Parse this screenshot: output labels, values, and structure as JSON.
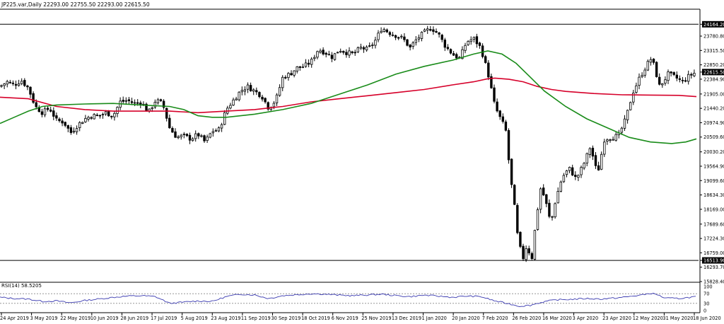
{
  "header": {
    "symbol_line": "JP225.var,Daily   22293.00 22755.50 22293.00 22615.50"
  },
  "rsi_label": "RSI(14) 58.5205",
  "colors": {
    "price_bar": "#000000",
    "ma_short": "#d6002a",
    "ma_green": "#1a8c1a",
    "rsi_line": "#3b3bb0",
    "hline": "#000000",
    "axis_text": "#000000",
    "level_box_bg": "#000000",
    "level_box_text": "#ffffff",
    "rsi_level_line": "#888888"
  },
  "chart_data": [
    {
      "type": "candlestick",
      "symbol": "JP225.var",
      "timeframe": "Daily",
      "ylim": [
        15828.0,
        24629.5
      ],
      "y_ticks": [
        "24164.20",
        "23780.80",
        "23315.50",
        "22850.20",
        "22615.50",
        "22384.90",
        "21905.00",
        "21440.20",
        "20974.90",
        "20509.60",
        "20030.20",
        "19564.90",
        "19099.60",
        "18634.30",
        "18169.00",
        "17689.60",
        "17224.30",
        "16759.00",
        "16513.90",
        "16293.70",
        "15828.40"
      ],
      "x_tick_labels": [
        "24 Apr 2019",
        "3 May 2019",
        "22 May 2019",
        "10 Jun 2019",
        "28 Jun 2019",
        "17 Jul 2019",
        "5 Aug 2019",
        "23 Aug 2019",
        "11 Sep 2019",
        "30 Sep 2019",
        "18 Oct 2019",
        "6 Nov 2019",
        "25 Nov 2019",
        "13 Dec 2019",
        "1 Jan 2020",
        "20 Jan 2020",
        "7 Feb 2020",
        "26 Feb 2020",
        "16 Mar 2020",
        "3 Apr 2020",
        "23 Apr 2020",
        "12 May 2020",
        "31 May 2020",
        "18 Jun 2020"
      ],
      "horizontal_lines": [
        {
          "level": 24164.2,
          "label": "24164.20"
        },
        {
          "level": 16513.9,
          "label": "16513.90"
        }
      ],
      "current_price": {
        "level": 22615.5,
        "label": "22615.50"
      },
      "close_path": [
        [
          0,
          22150
        ],
        [
          10,
          22300
        ],
        [
          20,
          22200
        ],
        [
          30,
          22350
        ],
        [
          40,
          22100
        ],
        [
          50,
          21500
        ],
        [
          60,
          21300
        ],
        [
          70,
          21450
        ],
        [
          80,
          21050
        ],
        [
          90,
          21000
        ],
        [
          100,
          20650
        ],
        [
          110,
          20900
        ],
        [
          120,
          21100
        ],
        [
          130,
          21200
        ],
        [
          140,
          21200
        ],
        [
          150,
          21300
        ],
        [
          160,
          21200
        ],
        [
          170,
          21650
        ],
        [
          180,
          21700
        ],
        [
          190,
          21600
        ],
        [
          200,
          21650
        ],
        [
          210,
          21300
        ],
        [
          220,
          21700
        ],
        [
          230,
          21600
        ],
        [
          240,
          20800
        ],
        [
          250,
          20500
        ],
        [
          260,
          20550
        ],
        [
          270,
          20450
        ],
        [
          280,
          20600
        ],
        [
          290,
          20350
        ],
        [
          300,
          20700
        ],
        [
          310,
          20750
        ],
        [
          320,
          21400
        ],
        [
          330,
          21700
        ],
        [
          340,
          22000
        ],
        [
          350,
          22150
        ],
        [
          360,
          22000
        ],
        [
          370,
          21850
        ],
        [
          380,
          21450
        ],
        [
          390,
          21700
        ],
        [
          400,
          22450
        ],
        [
          410,
          22550
        ],
        [
          420,
          22750
        ],
        [
          430,
          22800
        ],
        [
          440,
          22950
        ],
        [
          450,
          23350
        ],
        [
          460,
          23250
        ],
        [
          470,
          23100
        ],
        [
          480,
          23350
        ],
        [
          490,
          23250
        ],
        [
          500,
          23200
        ],
        [
          510,
          23400
        ],
        [
          520,
          23350
        ],
        [
          530,
          23600
        ],
        [
          540,
          24050
        ],
        [
          550,
          23900
        ],
        [
          560,
          23800
        ],
        [
          570,
          23700
        ],
        [
          580,
          23400
        ],
        [
          590,
          23700
        ],
        [
          600,
          23900
        ],
        [
          610,
          24050
        ],
        [
          620,
          23850
        ],
        [
          630,
          23450
        ],
        [
          640,
          23200
        ],
        [
          650,
          23050
        ],
        [
          660,
          23600
        ],
        [
          670,
          23700
        ],
        [
          680,
          23400
        ],
        [
          690,
          22600
        ],
        [
          700,
          21500
        ],
        [
          710,
          21000
        ],
        [
          715,
          20800
        ],
        [
          722,
          19200
        ],
        [
          728,
          18200
        ],
        [
          733,
          17100
        ],
        [
          740,
          16600
        ],
        [
          745,
          17000
        ],
        [
          752,
          16550
        ],
        [
          758,
          17800
        ],
        [
          765,
          18900
        ],
        [
          772,
          18400
        ],
        [
          779,
          17700
        ],
        [
          786,
          18500
        ],
        [
          795,
          19200
        ],
        [
          805,
          19500
        ],
        [
          815,
          19150
        ],
        [
          825,
          19600
        ],
        [
          835,
          20200
        ],
        [
          845,
          19300
        ],
        [
          855,
          20450
        ],
        [
          865,
          20500
        ],
        [
          875,
          20550
        ],
        [
          885,
          21100
        ],
        [
          895,
          21950
        ],
        [
          905,
          22450
        ],
        [
          915,
          22850
        ],
        [
          920,
          23050
        ],
        [
          926,
          22800
        ],
        [
          932,
          22150
        ],
        [
          938,
          22300
        ],
        [
          945,
          22550
        ],
        [
          955,
          22450
        ],
        [
          965,
          22300
        ],
        [
          975,
          22500
        ],
        [
          985,
          22615
        ]
      ],
      "ma_red_path": [
        [
          0,
          21800
        ],
        [
          40,
          21750
        ],
        [
          80,
          21500
        ],
        [
          120,
          21400
        ],
        [
          160,
          21350
        ],
        [
          200,
          21350
        ],
        [
          240,
          21350
        ],
        [
          280,
          21300
        ],
        [
          320,
          21350
        ],
        [
          360,
          21400
        ],
        [
          400,
          21500
        ],
        [
          440,
          21650
        ],
        [
          480,
          21750
        ],
        [
          520,
          21850
        ],
        [
          560,
          21950
        ],
        [
          600,
          22050
        ],
        [
          640,
          22200
        ],
        [
          670,
          22300
        ],
        [
          690,
          22400
        ],
        [
          700,
          22420
        ],
        [
          720,
          22380
        ],
        [
          740,
          22300
        ],
        [
          760,
          22150
        ],
        [
          780,
          22050
        ],
        [
          800,
          21990
        ],
        [
          840,
          21920
        ],
        [
          880,
          21880
        ],
        [
          920,
          21870
        ],
        [
          960,
          21860
        ],
        [
          985,
          21820
        ]
      ],
      "ma_green_path": [
        [
          0,
          20950
        ],
        [
          20,
          21150
        ],
        [
          40,
          21350
        ],
        [
          60,
          21500
        ],
        [
          80,
          21550
        ],
        [
          120,
          21580
        ],
        [
          160,
          21600
        ],
        [
          200,
          21550
        ],
        [
          240,
          21500
        ],
        [
          260,
          21400
        ],
        [
          280,
          21200
        ],
        [
          300,
          21150
        ],
        [
          320,
          21150
        ],
        [
          360,
          21250
        ],
        [
          400,
          21400
        ],
        [
          440,
          21600
        ],
        [
          480,
          21900
        ],
        [
          520,
          22200
        ],
        [
          560,
          22550
        ],
        [
          600,
          22800
        ],
        [
          640,
          23000
        ],
        [
          670,
          23200
        ],
        [
          690,
          23300
        ],
        [
          710,
          23200
        ],
        [
          730,
          22900
        ],
        [
          750,
          22450
        ],
        [
          770,
          22000
        ],
        [
          800,
          21500
        ],
        [
          830,
          21100
        ],
        [
          860,
          20800
        ],
        [
          890,
          20500
        ],
        [
          920,
          20350
        ],
        [
          950,
          20300
        ],
        [
          970,
          20350
        ],
        [
          985,
          20450
        ]
      ]
    },
    {
      "type": "line",
      "name": "RSI(14)",
      "ylim": [
        0,
        100
      ],
      "y_ticks": [
        "100",
        "70",
        "30",
        "0"
      ],
      "levels": [
        70,
        30
      ],
      "value_path": [
        [
          0,
          55
        ],
        [
          20,
          50
        ],
        [
          40,
          48
        ],
        [
          60,
          38
        ],
        [
          80,
          40
        ],
        [
          100,
          32
        ],
        [
          120,
          42
        ],
        [
          140,
          48
        ],
        [
          160,
          55
        ],
        [
          180,
          60
        ],
        [
          200,
          62
        ],
        [
          220,
          58
        ],
        [
          240,
          30
        ],
        [
          260,
          35
        ],
        [
          280,
          40
        ],
        [
          300,
          38
        ],
        [
          320,
          58
        ],
        [
          340,
          68
        ],
        [
          360,
          65
        ],
        [
          380,
          50
        ],
        [
          400,
          62
        ],
        [
          420,
          66
        ],
        [
          440,
          70
        ],
        [
          460,
          68
        ],
        [
          480,
          64
        ],
        [
          500,
          62
        ],
        [
          520,
          65
        ],
        [
          540,
          68
        ],
        [
          560,
          62
        ],
        [
          580,
          58
        ],
        [
          600,
          64
        ],
        [
          620,
          60
        ],
        [
          640,
          55
        ],
        [
          660,
          60
        ],
        [
          680,
          58
        ],
        [
          700,
          40
        ],
        [
          720,
          28
        ],
        [
          735,
          18
        ],
        [
          750,
          22
        ],
        [
          760,
          30
        ],
        [
          775,
          40
        ],
        [
          790,
          45
        ],
        [
          810,
          47
        ],
        [
          830,
          50
        ],
        [
          850,
          48
        ],
        [
          870,
          52
        ],
        [
          890,
          58
        ],
        [
          910,
          66
        ],
        [
          920,
          72
        ],
        [
          930,
          66
        ],
        [
          940,
          52
        ],
        [
          960,
          50
        ],
        [
          985,
          58
        ]
      ]
    }
  ]
}
